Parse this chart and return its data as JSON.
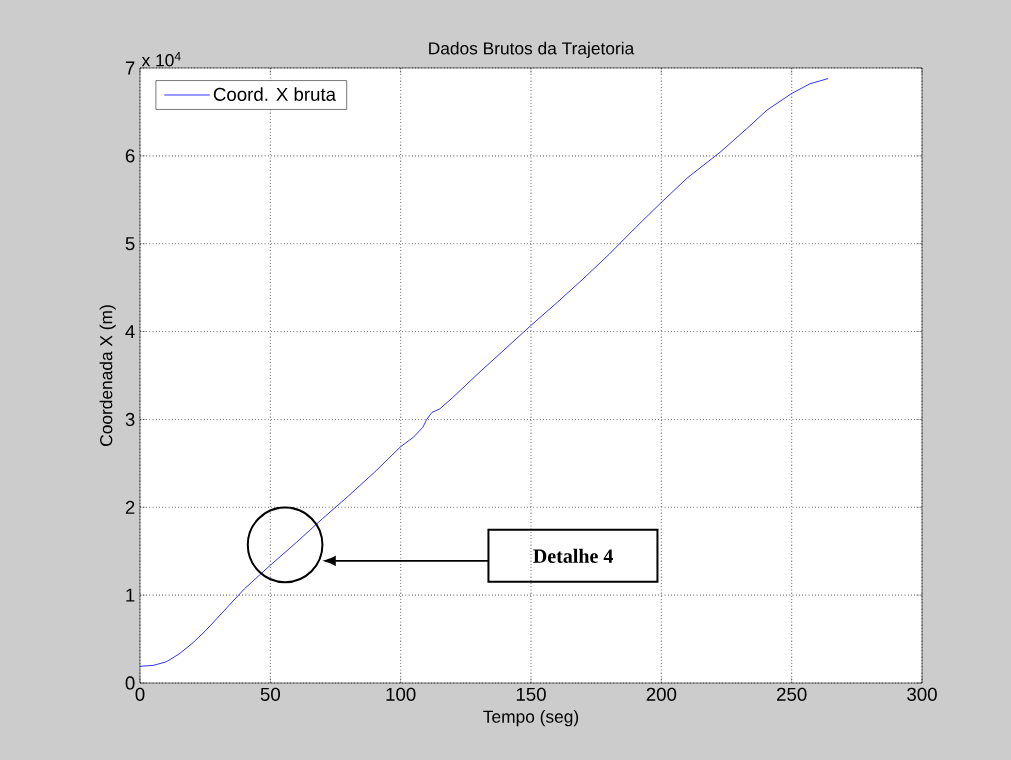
{
  "chart_data": {
    "type": "line",
    "title": "Dados Brutos da Trajetoria",
    "xlabel": "Tempo (seg)",
    "ylabel": "Coordenada X (m)",
    "annotations": [
      "x 10$^{4}$",
      "Detalhe 4"
    ],
    "x": [
      0,
      5,
      10,
      15,
      20,
      25,
      30,
      40,
      50,
      60,
      70,
      80,
      90,
      100,
      105,
      108.5,
      110,
      112,
      115,
      120,
      130,
      140,
      150,
      160,
      170,
      180,
      190,
      200,
      210,
      222.5,
      232.8,
      240.5,
      250,
      257,
      264
    ],
    "series": [
      {
        "name": "Coord. X bruta",
        "color": "#0000ff",
        "values": [
          0.19,
          0.2,
          0.24,
          0.33,
          0.45,
          0.59,
          0.75,
          1.07,
          1.34,
          1.6,
          1.87,
          2.13,
          2.4,
          2.69,
          2.8,
          2.91,
          3.0,
          3.08,
          3.12,
          3.25,
          3.53,
          3.8,
          4.07,
          4.33,
          4.6,
          4.88,
          5.18,
          5.47,
          5.75,
          6.04,
          6.31,
          6.52,
          6.71,
          6.82,
          6.88
        ]
      }
    ],
    "xlim": [
      0,
      300
    ],
    "ylim": [
      0,
      7
    ],
    "xticks": [
      0,
      50,
      100,
      150,
      200,
      250,
      300
    ],
    "yticks": [
      0,
      1,
      2,
      3,
      4,
      5,
      6,
      7
    ],
    "grid": true,
    "legend": "top left",
    "line_style": "solid",
    "marker": "none"
  }
}
